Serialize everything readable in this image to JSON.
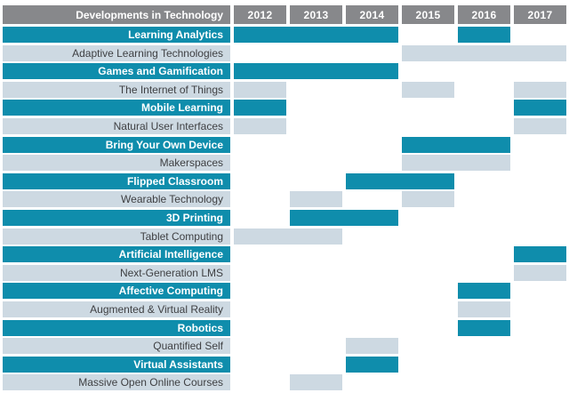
{
  "title": "Developments in Technology",
  "header": {
    "label": "Developments in Technology",
    "years": [
      "2012",
      "2013",
      "2014",
      "2015",
      "2016",
      "2017"
    ]
  },
  "colors": {
    "teal": "#0f8dac",
    "light_blue": "#cdd9e2",
    "header_gray": "#87888b",
    "dark_text": "#3f4043",
    "white_text": "#ffffff"
  },
  "chart_data": {
    "type": "table",
    "title": "Developments in Technology",
    "columns": [
      "2012",
      "2013",
      "2014",
      "2015",
      "2016",
      "2017"
    ],
    "first_year": 2012,
    "legend": "teal rows = highlighted technologies (white bold labels); light rows = standard technologies (dark labels); filled cells mark years the technology appears",
    "rows": [
      {
        "label": "Learning Analytics",
        "style": "teal",
        "year_ranges": [
          [
            2012,
            2014
          ],
          [
            2016,
            2016
          ]
        ]
      },
      {
        "label": "Adaptive Learning Technologies",
        "style": "light",
        "year_ranges": [
          [
            2015,
            2017
          ]
        ]
      },
      {
        "label": "Games and Gamification",
        "style": "teal",
        "year_ranges": [
          [
            2012,
            2014
          ]
        ]
      },
      {
        "label": "The Internet of Things",
        "style": "light",
        "year_ranges": [
          [
            2012,
            2012
          ],
          [
            2015,
            2015
          ],
          [
            2017,
            2017
          ]
        ]
      },
      {
        "label": "Mobile Learning",
        "style": "teal",
        "year_ranges": [
          [
            2012,
            2012
          ],
          [
            2017,
            2017
          ]
        ]
      },
      {
        "label": "Natural User Interfaces",
        "style": "light",
        "year_ranges": [
          [
            2012,
            2012
          ],
          [
            2017,
            2017
          ]
        ]
      },
      {
        "label": "Bring Your Own Device",
        "style": "teal",
        "year_ranges": [
          [
            2015,
            2016
          ]
        ]
      },
      {
        "label": "Makerspaces",
        "style": "light",
        "year_ranges": [
          [
            2015,
            2016
          ]
        ]
      },
      {
        "label": "Flipped Classroom",
        "style": "teal",
        "year_ranges": [
          [
            2014,
            2015
          ]
        ]
      },
      {
        "label": "Wearable Technology",
        "style": "light",
        "year_ranges": [
          [
            2013,
            2013
          ],
          [
            2015,
            2015
          ]
        ]
      },
      {
        "label": "3D Printing",
        "style": "teal",
        "year_ranges": [
          [
            2013,
            2014
          ]
        ]
      },
      {
        "label": "Tablet Computing",
        "style": "light",
        "year_ranges": [
          [
            2012,
            2013
          ]
        ]
      },
      {
        "label": "Artificial Intelligence",
        "style": "teal",
        "year_ranges": [
          [
            2017,
            2017
          ]
        ]
      },
      {
        "label": "Next-Generation LMS",
        "style": "light",
        "year_ranges": [
          [
            2017,
            2017
          ]
        ]
      },
      {
        "label": "Affective Computing",
        "style": "teal",
        "year_ranges": [
          [
            2016,
            2016
          ]
        ]
      },
      {
        "label": "Augmented & Virtual Reality",
        "style": "light",
        "year_ranges": [
          [
            2016,
            2016
          ]
        ]
      },
      {
        "label": "Robotics",
        "style": "teal",
        "year_ranges": [
          [
            2016,
            2016
          ]
        ]
      },
      {
        "label": "Quantified Self",
        "style": "light",
        "year_ranges": [
          [
            2014,
            2014
          ]
        ]
      },
      {
        "label": "Virtual Assistants",
        "style": "teal",
        "year_ranges": [
          [
            2014,
            2014
          ]
        ]
      },
      {
        "label": "Massive Open Online Courses",
        "style": "light",
        "year_ranges": [
          [
            2013,
            2013
          ]
        ]
      }
    ]
  }
}
